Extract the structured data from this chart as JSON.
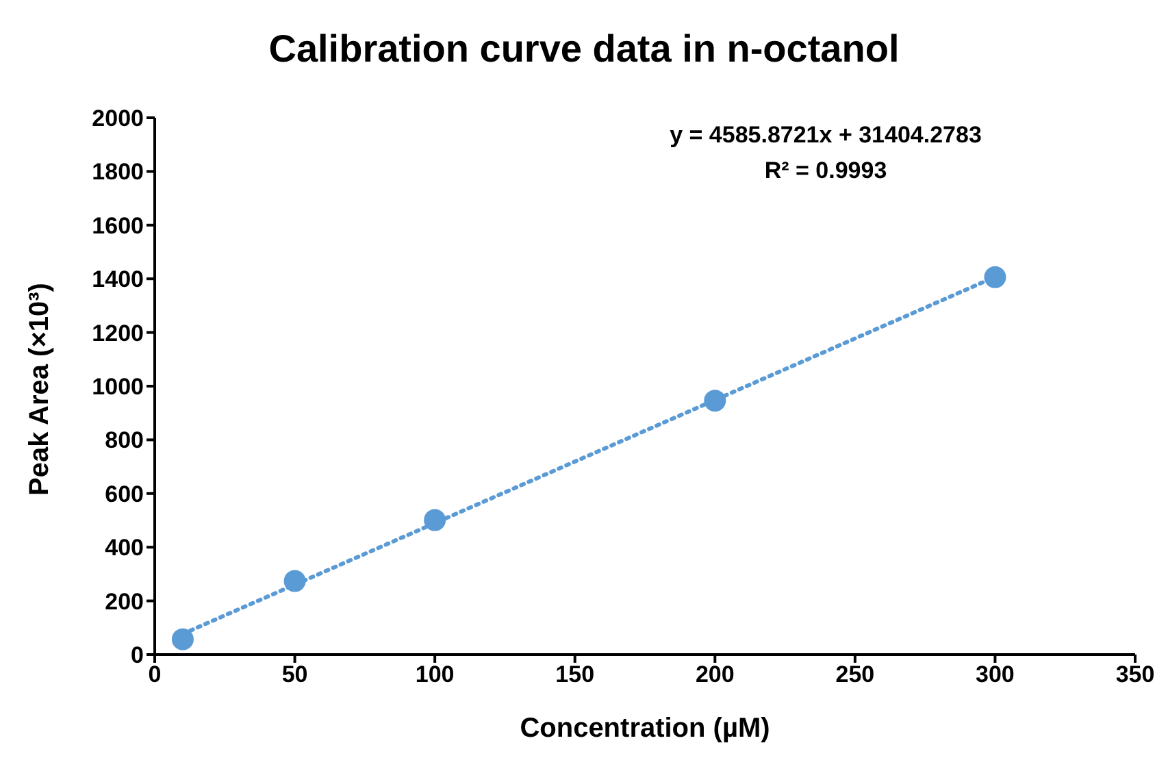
{
  "chart_data": {
    "type": "scatter",
    "title": "Calibration curve data in n-octanol",
    "xlabel": "Concentration (µM)",
    "ylabel": "Peak Area (×10³)",
    "annotations": [
      "y = 4585.8721x + 31404.2783",
      "R² = 0.9993"
    ],
    "xlim": [
      0,
      350
    ],
    "xticks": [
      0,
      50,
      100,
      150,
      200,
      250,
      300,
      350
    ],
    "ylim": [
      0,
      2000
    ],
    "yticks": [
      0,
      200,
      400,
      600,
      800,
      1000,
      1200,
      1400,
      1600,
      1800,
      2000
    ],
    "grid": false,
    "legend": false,
    "marker": "circle",
    "series": [
      {
        "color": "#5b9bd5",
        "x": [
          10,
          50,
          100,
          200,
          300
        ],
        "values": [
          57,
          274,
          501,
          946,
          1406
        ]
      },
      {
        "type": "line",
        "color": "#5b9bd5",
        "x": [
          10,
          300
        ],
        "values": [
          77,
          1407
        ],
        "marker": "none",
        "line_style": "dotted"
      }
    ]
  }
}
